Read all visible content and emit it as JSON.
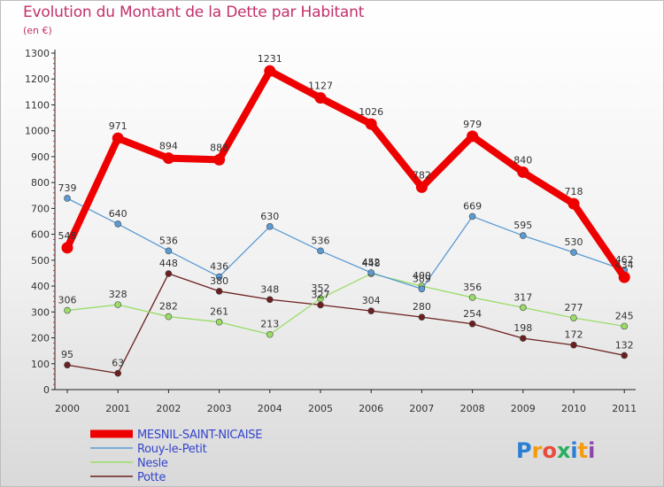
{
  "title": "Evolution du Montant de la Dette par Habitant",
  "unit": "(en €)",
  "logo_text": "Proxiti",
  "chart_data": {
    "type": "line",
    "categories": [
      "2000",
      "2001",
      "2002",
      "2003",
      "2004",
      "2005",
      "2006",
      "2007",
      "2008",
      "2009",
      "2010",
      "2011"
    ],
    "ylim": [
      0,
      1300
    ],
    "yticks": [
      "0",
      "100",
      "200",
      "300",
      "400",
      "500",
      "600",
      "700",
      "800",
      "900",
      "1000",
      "1100",
      "1200",
      "1300"
    ],
    "grid": false,
    "legend_position": "bottom-left",
    "series": [
      {
        "name": "MESNIL-SAINT-NICAISE",
        "color": "#ee0000",
        "values": [
          548,
          971,
          894,
          888,
          1231,
          1127,
          1026,
          782,
          979,
          840,
          718,
          434
        ],
        "labels": [
          "548",
          "971",
          "894",
          "888",
          "1231",
          "1127",
          "1026",
          "782",
          "979",
          "840",
          "718",
          "434"
        ]
      },
      {
        "name": "Rouy-le-Petit",
        "color": "#5b9bd5",
        "values": [
          739,
          640,
          536,
          436,
          630,
          536,
          452,
          389,
          669,
          595,
          530,
          462
        ],
        "labels": [
          "739",
          "640",
          "536",
          "436",
          "630",
          "536",
          "452",
          "389",
          "669",
          "595",
          "530",
          "462"
        ]
      },
      {
        "name": "Nesle",
        "color": "#99dd66",
        "values": [
          306,
          328,
          282,
          261,
          213,
          352,
          448,
          400,
          356,
          317,
          277,
          245
        ],
        "labels": [
          "306",
          "328",
          "282",
          "261",
          "213",
          "352",
          "448",
          "400",
          "356",
          "317",
          "277",
          "245"
        ]
      },
      {
        "name": "Potte",
        "color": "#6b1f1f",
        "values": [
          95,
          63,
          448,
          380,
          348,
          327,
          304,
          280,
          254,
          198,
          172,
          132
        ],
        "labels": [
          "95",
          "63",
          "448",
          "380",
          "348",
          "327",
          "304",
          "280",
          "254",
          "198",
          "172",
          "132"
        ]
      }
    ]
  }
}
